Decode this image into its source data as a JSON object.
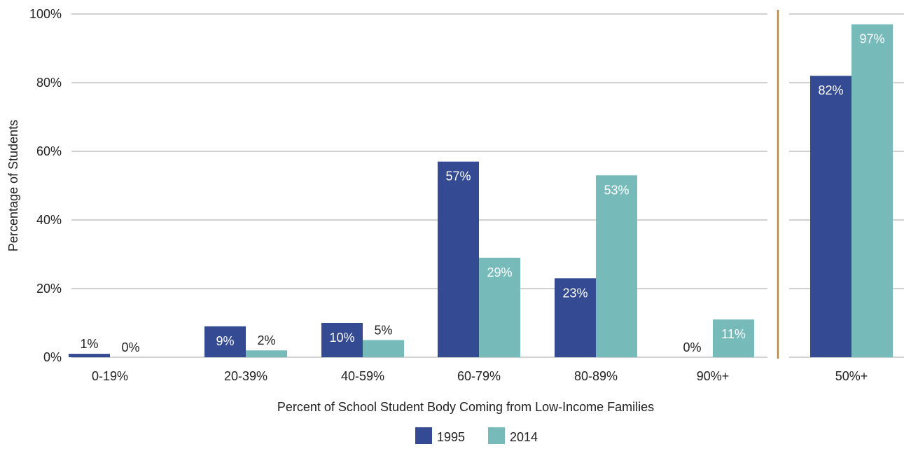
{
  "chart_data": {
    "type": "bar",
    "title": "",
    "xlabel": "Percent of School Student Body Coming from Low-Income Families",
    "ylabel": "Percentage of Students",
    "ylim": [
      0,
      100
    ],
    "yticks": [
      0,
      20,
      40,
      60,
      80,
      100
    ],
    "ytick_labels": [
      "0%",
      "20%",
      "40%",
      "60%",
      "80%",
      "100%"
    ],
    "grid": true,
    "legend_position": "bottom-center",
    "categories": [
      "0-19%",
      "20-39%",
      "40-59%",
      "60-79%",
      "80-89%",
      "90%+",
      "50%+"
    ],
    "series": [
      {
        "name": "1995",
        "color": "#344a93",
        "values": [
          1,
          9,
          10,
          57,
          23,
          0,
          82
        ],
        "labels": [
          "1%",
          "9%",
          "10%",
          "57%",
          "23%",
          "0%",
          "82%"
        ]
      },
      {
        "name": "2014",
        "color": "#76bab9",
        "values": [
          0,
          2,
          5,
          29,
          53,
          11,
          97
        ],
        "labels": [
          "0%",
          "2%",
          "5%",
          "29%",
          "53%",
          "11%",
          "97%"
        ]
      }
    ],
    "separator_color": "#b8893a"
  }
}
